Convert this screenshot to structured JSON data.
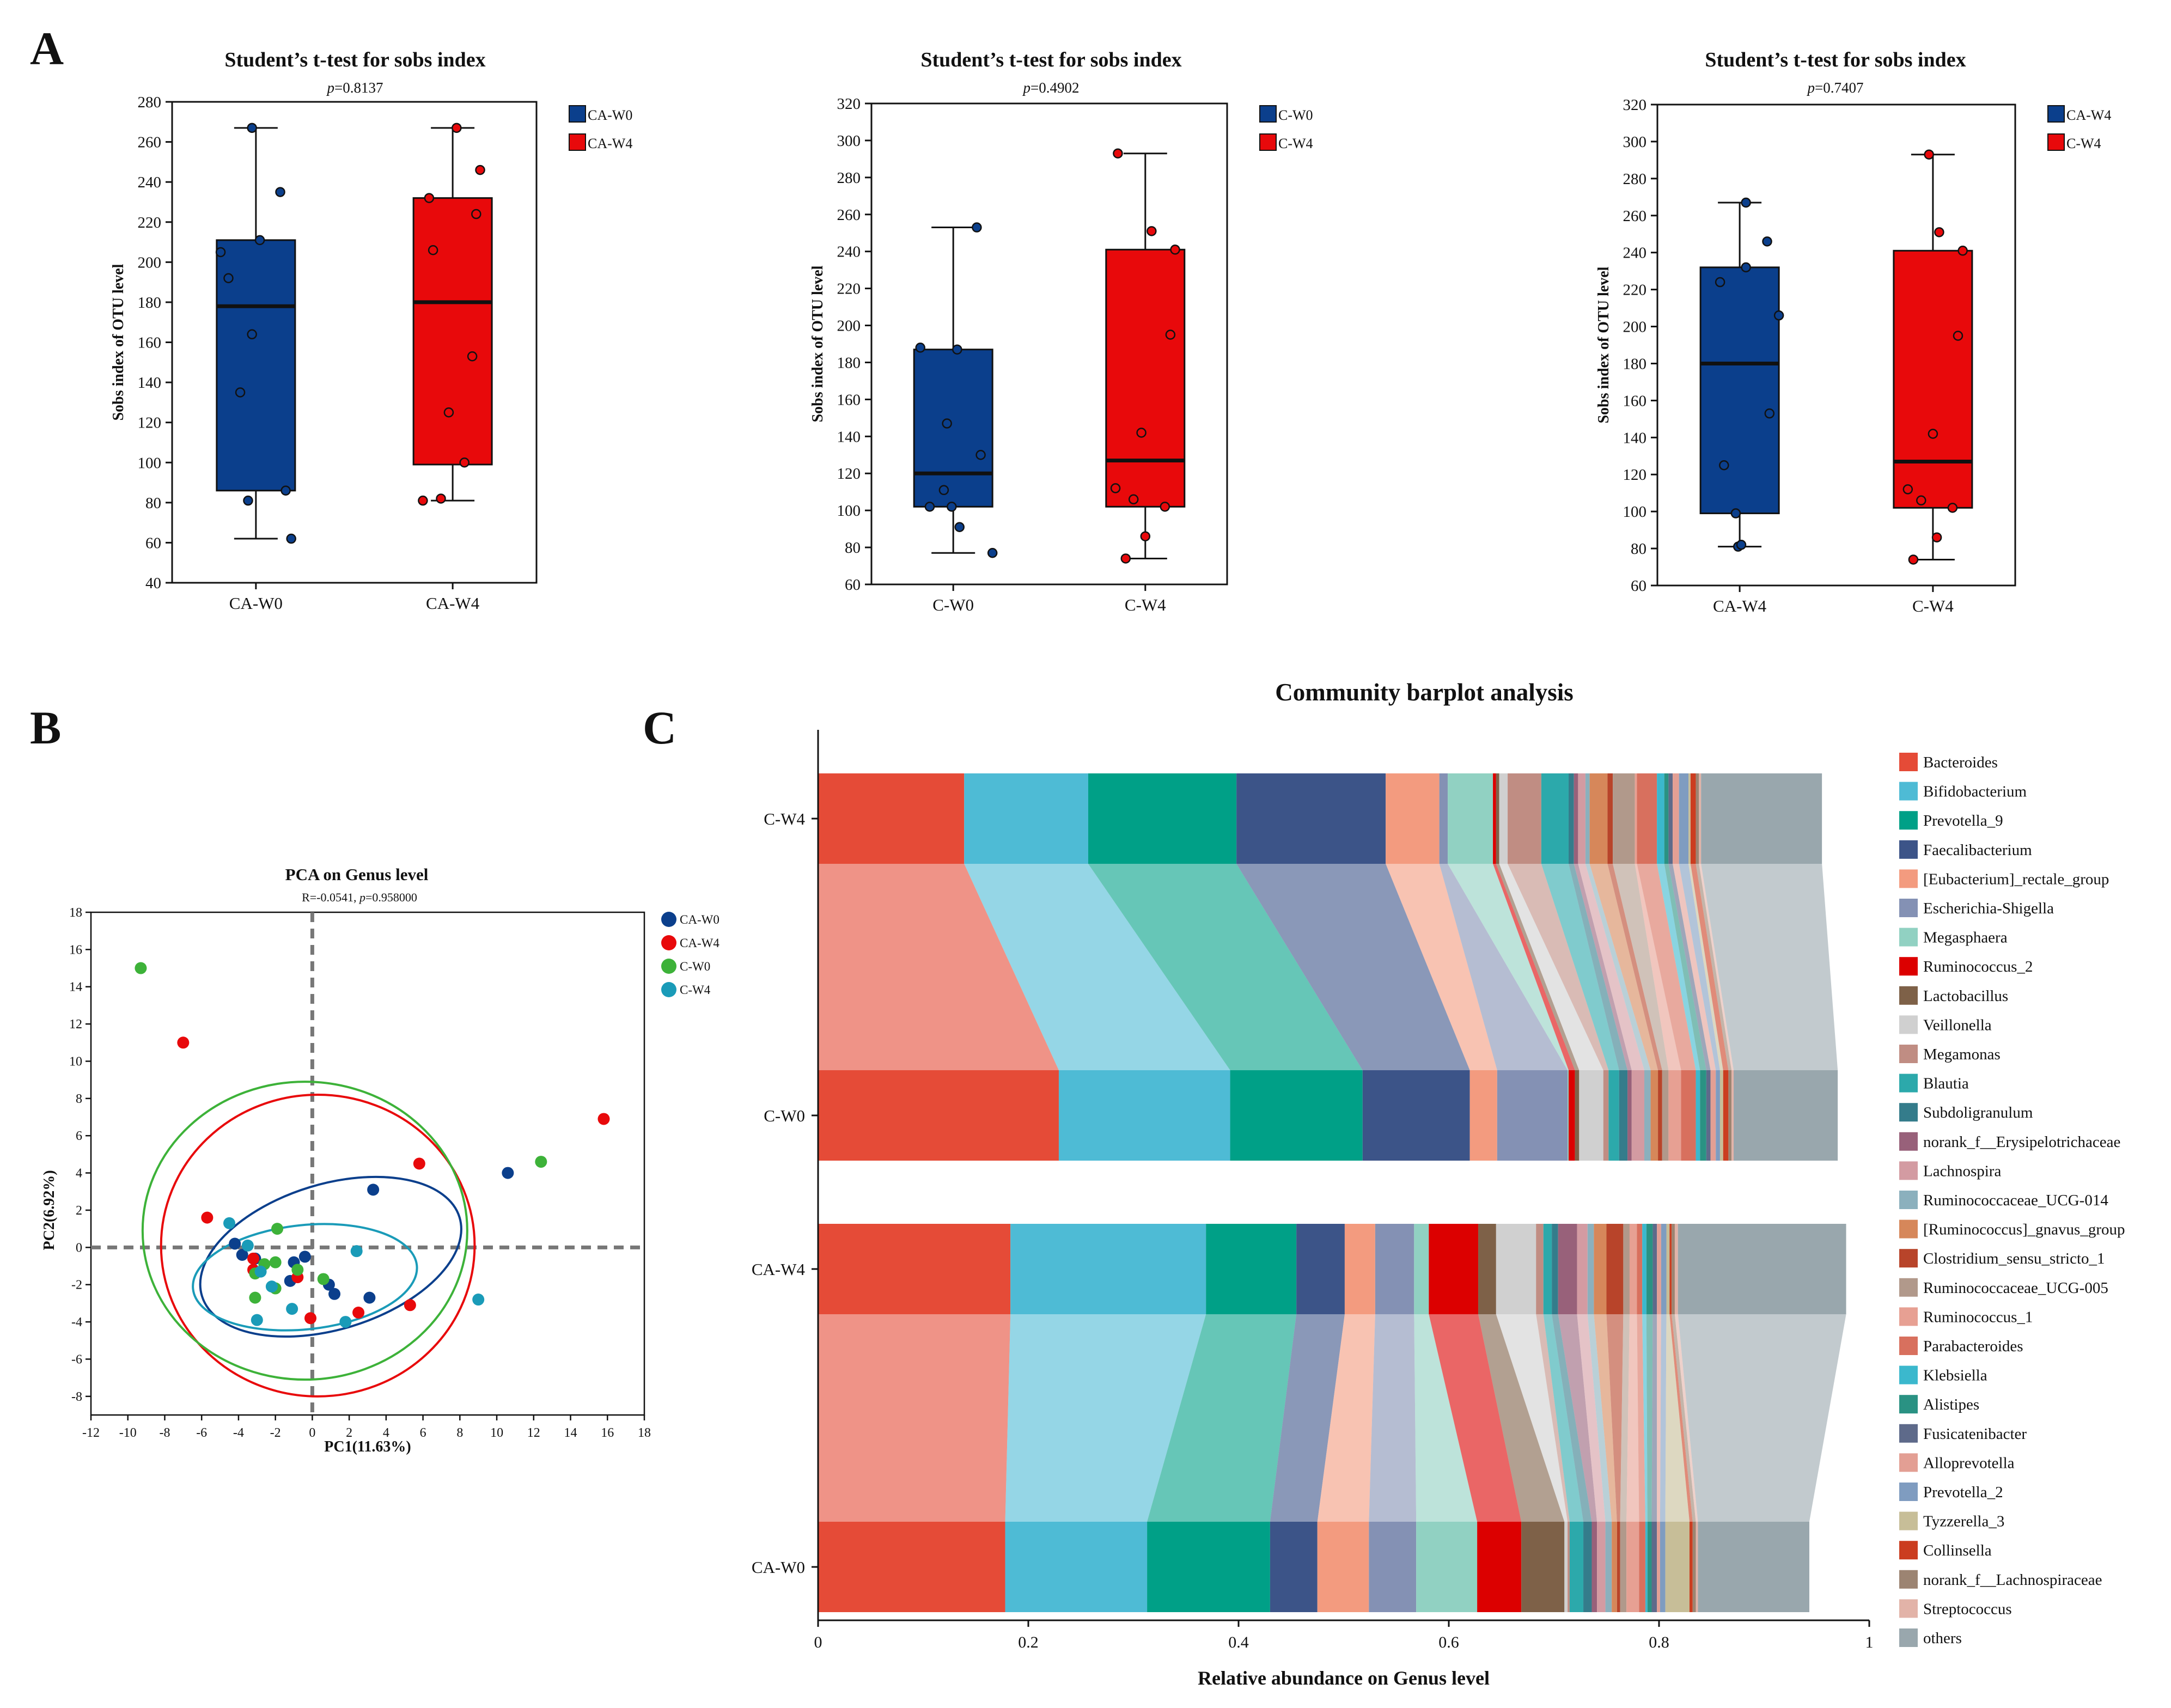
{
  "panel_letters": [
    "A",
    "B",
    "C"
  ],
  "chart_data": [
    {
      "type": "box",
      "title": "Student’s t-test for sobs index",
      "pvalue_label": "p",
      "pvalue_text": "=0.8137",
      "ylabel": "Sobs index of OTU level",
      "ylim": [
        40,
        280
      ],
      "yticks": [
        40,
        60,
        80,
        100,
        120,
        140,
        160,
        180,
        200,
        220,
        240,
        260,
        280
      ],
      "groups": [
        {
          "name": "CA-W0",
          "color": "#0b3f8c",
          "whisker_low": 62,
          "q1": 86,
          "median": 178,
          "q3": 211,
          "whisker_high": 267,
          "points": [
            [
              -0.05,
              267
            ],
            [
              0.31,
              235
            ],
            [
              0.05,
              211
            ],
            [
              -0.45,
              205
            ],
            [
              -0.35,
              192
            ],
            [
              -0.05,
              164
            ],
            [
              -0.2,
              135
            ],
            [
              -0.1,
              81
            ],
            [
              0.38,
              86
            ],
            [
              0.45,
              62
            ]
          ]
        },
        {
          "name": "CA-W4",
          "color": "#e8090b",
          "whisker_low": 81,
          "q1": 99,
          "median": 180,
          "q3": 232,
          "whisker_high": 267,
          "points": [
            [
              0.05,
              267
            ],
            [
              0.35,
              246
            ],
            [
              -0.3,
              232
            ],
            [
              0.3,
              224
            ],
            [
              -0.25,
              206
            ],
            [
              0.25,
              153
            ],
            [
              -0.05,
              125
            ],
            [
              0.15,
              100
            ],
            [
              -0.38,
              81
            ],
            [
              -0.15,
              82
            ]
          ]
        }
      ]
    },
    {
      "type": "box",
      "title": "Student’s t-test for sobs index",
      "pvalue_label": "p",
      "pvalue_text": "=0.4902",
      "ylabel": "Sobs index of OTU level",
      "ylim": [
        60,
        320
      ],
      "yticks": [
        60,
        80,
        100,
        120,
        140,
        160,
        180,
        200,
        220,
        240,
        260,
        280,
        300,
        320
      ],
      "groups": [
        {
          "name": "C-W0",
          "color": "#0b3f8c",
          "whisker_low": 77,
          "q1": 102,
          "median": 120,
          "q3": 187,
          "whisker_high": 253,
          "points": [
            [
              0.3,
              253
            ],
            [
              -0.42,
              188
            ],
            [
              0.05,
              187
            ],
            [
              -0.08,
              147
            ],
            [
              0.35,
              130
            ],
            [
              -0.12,
              111
            ],
            [
              -0.3,
              102
            ],
            [
              0.08,
              91
            ],
            [
              0.5,
              77
            ],
            [
              -0.02,
              102
            ]
          ]
        },
        {
          "name": "C-W4",
          "color": "#e8090b",
          "whisker_low": 74,
          "q1": 102,
          "median": 127,
          "q3": 241,
          "whisker_high": 293,
          "points": [
            [
              -0.35,
              293
            ],
            [
              0.08,
              251
            ],
            [
              0.38,
              241
            ],
            [
              0.32,
              195
            ],
            [
              -0.05,
              142
            ],
            [
              -0.38,
              112
            ],
            [
              -0.15,
              106
            ],
            [
              0.25,
              102
            ],
            [
              0.0,
              86
            ],
            [
              -0.25,
              74
            ]
          ]
        }
      ]
    },
    {
      "type": "box",
      "title": "Student’s t-test for sobs index",
      "pvalue_label": "p",
      "pvalue_text": "=0.7407",
      "ylabel": "Sobs index of OTU level",
      "ylim": [
        60,
        320
      ],
      "yticks": [
        60,
        80,
        100,
        120,
        140,
        160,
        180,
        200,
        220,
        240,
        260,
        280,
        300,
        320
      ],
      "groups": [
        {
          "name": "CA-W4",
          "color": "#0b3f8c",
          "whisker_low": 81,
          "q1": 99,
          "median": 180,
          "q3": 232,
          "whisker_high": 267,
          "points": [
            [
              0.08,
              267
            ],
            [
              0.35,
              246
            ],
            [
              0.08,
              232
            ],
            [
              -0.25,
              224
            ],
            [
              0.5,
              206
            ],
            [
              0.38,
              153
            ],
            [
              -0.2,
              125
            ],
            [
              -0.05,
              99
            ],
            [
              -0.02,
              81
            ],
            [
              0.02,
              82
            ]
          ]
        },
        {
          "name": "C-W4",
          "color": "#e8090b",
          "whisker_low": 74,
          "q1": 102,
          "median": 127,
          "q3": 241,
          "whisker_high": 293,
          "points": [
            [
              -0.05,
              293
            ],
            [
              0.08,
              251
            ],
            [
              0.38,
              241
            ],
            [
              0.32,
              195
            ],
            [
              0.0,
              142
            ],
            [
              -0.32,
              112
            ],
            [
              -0.15,
              106
            ],
            [
              0.25,
              102
            ],
            [
              0.05,
              86
            ],
            [
              -0.25,
              74
            ]
          ]
        }
      ]
    },
    {
      "type": "scatter",
      "title": "PCA on Genus level",
      "subtitle_prefix": "R=-0.0541, ",
      "subtitle_p": "p",
      "subtitle_suffix": "=0.958000",
      "xlabel": "PC1(11.63%)",
      "ylabel": "PC2(6.92%)",
      "xlim": [
        -12,
        18
      ],
      "ylim": [
        -9,
        18
      ],
      "xticks": [
        -12,
        -10,
        -8,
        -6,
        -4,
        -2,
        0,
        2,
        4,
        6,
        8,
        10,
        12,
        14,
        16,
        18
      ],
      "yticks": [
        -8,
        -6,
        -4,
        -2,
        0,
        2,
        4,
        6,
        8,
        10,
        12,
        14,
        16,
        18
      ],
      "series": [
        {
          "name": "CA-W0",
          "color": "#0b3f8c",
          "points": [
            [
              10.6,
              4.0
            ],
            [
              3.3,
              3.1
            ],
            [
              -4.2,
              0.2
            ],
            [
              -3.8,
              -0.4
            ],
            [
              -3.1,
              -0.6
            ],
            [
              -1.0,
              -0.8
            ],
            [
              -0.4,
              -0.5
            ],
            [
              -1.2,
              -1.8
            ],
            [
              0.9,
              -2.0
            ],
            [
              1.2,
              -2.5
            ],
            [
              3.1,
              -2.7
            ]
          ],
          "ellipse": {
            "cx": 1.0,
            "cy": -0.5,
            "rx": 7.3,
            "ry": 3.9,
            "angle_deg": 17
          }
        },
        {
          "name": "CA-W4",
          "color": "#e8090b",
          "points": [
            [
              -7.0,
              11.0
            ],
            [
              15.8,
              6.9
            ],
            [
              5.8,
              4.5
            ],
            [
              -5.7,
              1.6
            ],
            [
              -3.2,
              -1.2
            ],
            [
              -3.2,
              -0.6
            ],
            [
              -0.8,
              -1.6
            ],
            [
              -0.1,
              -3.8
            ],
            [
              2.5,
              -3.5
            ],
            [
              5.3,
              -3.1
            ]
          ],
          "ellipse": {
            "cx": 0.3,
            "cy": 0.1,
            "rx": 8.5,
            "ry": 8.1,
            "angle_deg": 0
          }
        },
        {
          "name": "C-W0",
          "color": "#3db239",
          "points": [
            [
              -9.3,
              15.0
            ],
            [
              12.4,
              4.6
            ],
            [
              -1.9,
              1.0
            ],
            [
              -2.0,
              -0.8
            ],
            [
              -2.6,
              -0.9
            ],
            [
              -3.1,
              -1.4
            ],
            [
              -0.8,
              -1.2
            ],
            [
              0.6,
              -1.7
            ],
            [
              -2.0,
              -2.2
            ],
            [
              -3.1,
              -2.7
            ]
          ],
          "ellipse": {
            "cx": -0.4,
            "cy": 0.9,
            "rx": 8.8,
            "ry": 8.0,
            "angle_deg": 0
          }
        },
        {
          "name": "C-W4",
          "color": "#1a9bb8",
          "points": [
            [
              -4.5,
              1.3
            ],
            [
              -3.5,
              0.1
            ],
            [
              -2.8,
              -1.3
            ],
            [
              -2.2,
              -2.1
            ],
            [
              -1.1,
              -3.3
            ],
            [
              -3.0,
              -3.9
            ],
            [
              2.4,
              -0.2
            ],
            [
              1.8,
              -4.0
            ],
            [
              9.0,
              -2.8
            ]
          ],
          "ellipse": {
            "cx": -0.4,
            "cy": -1.6,
            "rx": 6.1,
            "ry": 2.8,
            "angle_deg": 6
          }
        }
      ]
    },
    {
      "type": "stacked_bar_horizontal",
      "title": "Community barplot analysis",
      "xlabel": "Relative abundance on Genus level",
      "xlim": [
        0,
        1
      ],
      "xticks": [
        0,
        0.2,
        0.4,
        0.6,
        0.8,
        1
      ],
      "xtick_labels": [
        "0",
        "0.2",
        "0.4",
        "0.6",
        "0.8",
        "1"
      ],
      "samples": [
        "C-W4",
        "C-W0",
        "CA-W4",
        "CA-W0"
      ],
      "genera": [
        {
          "name": "Bacteroides",
          "color": "#e54b37",
          "values": [
            0.139,
            0.229,
            0.183,
            0.178
          ]
        },
        {
          "name": "Bifidobacterium",
          "color": "#4ebbd5",
          "values": [
            0.118,
            0.163,
            0.186,
            0.135
          ]
        },
        {
          "name": "Prevotella_9",
          "color": "#00a087",
          "values": [
            0.141,
            0.126,
            0.086,
            0.117
          ]
        },
        {
          "name": "Faecalibacterium",
          "color": "#3c5488",
          "values": [
            0.142,
            0.102,
            0.046,
            0.045
          ]
        },
        {
          "name": "[Eubacterium]_rectale_group",
          "color": "#f39b7f",
          "values": [
            0.051,
            0.026,
            0.029,
            0.049
          ]
        },
        {
          "name": "Escherichia-Shigella",
          "color": "#8491b4",
          "values": [
            0.008,
            0.067,
            0.037,
            0.045
          ]
        },
        {
          "name": "Megasphaera",
          "color": "#91d1c2",
          "values": [
            0.043,
            0.001,
            0.014,
            0.058
          ]
        },
        {
          "name": "Ruminococcus_2",
          "color": "#dc0000",
          "values": [
            0.003,
            0.006,
            0.047,
            0.042
          ]
        },
        {
          "name": "Lactobacillus",
          "color": "#7e6148",
          "values": [
            0.003,
            0.004,
            0.017,
            0.041
          ]
        },
        {
          "name": "Veillonella",
          "color": "#d0d0d0",
          "values": [
            0.008,
            0.023,
            0.038,
            0.003
          ]
        },
        {
          "name": "Megamonas",
          "color": "#c08d83",
          "values": [
            0.032,
            0.005,
            0.007,
            0.002
          ]
        },
        {
          "name": "Blautia",
          "color": "#2ca9ab",
          "values": [
            0.026,
            0.01,
            0.008,
            0.013
          ]
        },
        {
          "name": "Subdoligranulum",
          "color": "#347c8b",
          "values": [
            0.005,
            0.008,
            0.006,
            0.008
          ]
        },
        {
          "name": "norank_f__Erysipelotrichaceae",
          "color": "#98617a",
          "values": [
            0.004,
            0.004,
            0.018,
            0.005
          ]
        },
        {
          "name": "Lachnospira",
          "color": "#d39ba2",
          "values": [
            0.007,
            0.012,
            0.01,
            0.008
          ]
        },
        {
          "name": "Ruminococcaceae_UCG-014",
          "color": "#8bb0bd",
          "values": [
            0.004,
            0.006,
            0.006,
            0.006
          ]
        },
        {
          "name": "[Ruminococcus]_gnavus_group",
          "color": "#d6875a",
          "values": [
            0.017,
            0.007,
            0.012,
            0.005
          ]
        },
        {
          "name": "Clostridium_sensu_stricto_1",
          "color": "#b8442a",
          "values": [
            0.005,
            0.004,
            0.016,
            0.003
          ]
        },
        {
          "name": "Ruminococcaceae_UCG-005",
          "color": "#b1998b",
          "values": [
            0.021,
            0.006,
            0.006,
            0.006
          ]
        },
        {
          "name": "Ruminococcus_1",
          "color": "#e7a093",
          "values": [
            0.002,
            0.012,
            0.007,
            0.012
          ]
        },
        {
          "name": "Parabacteroides",
          "color": "#d8705e",
          "values": [
            0.019,
            0.014,
            0.005,
            0.006
          ]
        },
        {
          "name": "Klebsiella",
          "color": "#3bb8cd",
          "values": [
            0.007,
            0.004,
            0.004,
            0.002
          ]
        },
        {
          "name": "Alistipes",
          "color": "#2a9283",
          "values": [
            0.004,
            0.006,
            0.006,
            0.004
          ]
        },
        {
          "name": "Fusicatenibacter",
          "color": "#5e6a8a",
          "values": [
            0.004,
            0.004,
            0.004,
            0.005
          ]
        },
        {
          "name": "Alloprevotella",
          "color": "#e39f94",
          "values": [
            0.006,
            0.005,
            0.004,
            0.003
          ]
        },
        {
          "name": "Prevotella_2",
          "color": "#7f9cc0",
          "values": [
            0.009,
            0.004,
            0.005,
            0.005
          ]
        },
        {
          "name": "Tyzzerella_3",
          "color": "#c7be98",
          "values": [
            0.002,
            0.003,
            0.003,
            0.023
          ]
        },
        {
          "name": "Collinsella",
          "color": "#cb3d20",
          "values": [
            0.005,
            0.005,
            0.002,
            0.003
          ]
        },
        {
          "name": "norank_f__Lachnospiraceae",
          "color": "#9c8472",
          "values": [
            0.003,
            0.003,
            0.003,
            0.003
          ]
        },
        {
          "name": "Streptococcus",
          "color": "#e2b3a8",
          "values": [
            0.002,
            0.002,
            0.003,
            0.002
          ]
        },
        {
          "name": "others",
          "color": "#99a7ad",
          "values": [
            0.115,
            0.099,
            0.16,
            0.106
          ]
        }
      ]
    }
  ]
}
